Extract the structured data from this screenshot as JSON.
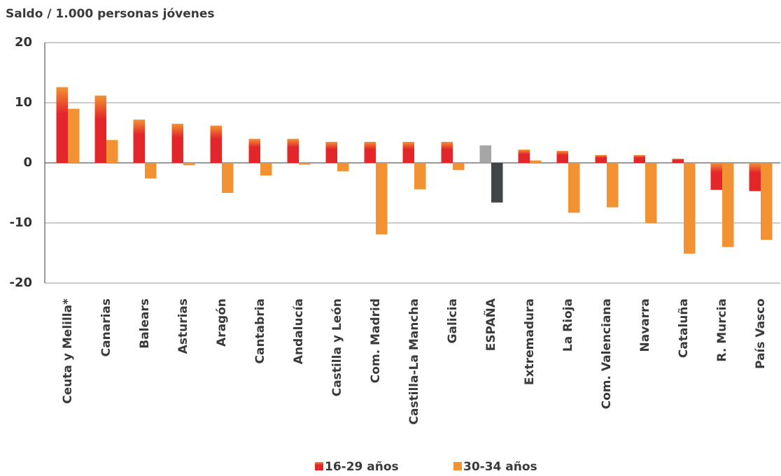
{
  "chart_data": {
    "type": "bar",
    "title": "Saldo / 1.000 personas jóvenes",
    "categories": [
      "Ceuta y Melilla*",
      "Canarias",
      "Balears",
      "Asturias",
      "Aragón",
      "Cantabria",
      "Andalucía",
      "Castilla y León",
      "Com. Madrid",
      "Castilla-La Mancha",
      "Galicia",
      "ESPAÑA",
      "Extremadura",
      "La Rioja",
      "Com. Valenciana",
      "Navarra",
      "Cataluña",
      "R. Murcia",
      "País Vasco"
    ],
    "series": [
      {
        "name": "16-29 años",
        "color": "#e3262a",
        "highlight_color": "#a6a6a6",
        "values": [
          12.6,
          11.2,
          7.2,
          6.5,
          6.2,
          4.0,
          4.0,
          3.5,
          3.5,
          3.5,
          3.5,
          2.9,
          2.2,
          2.0,
          1.3,
          1.3,
          0.7,
          -4.5,
          -4.7
        ]
      },
      {
        "name": "30-34 años",
        "color": "#f39233",
        "highlight_color": "#404548",
        "values": [
          9.0,
          3.8,
          -2.6,
          -0.4,
          -5.0,
          -2.1,
          -0.3,
          -1.4,
          -11.9,
          -4.4,
          -1.2,
          -6.6,
          0.4,
          -8.3,
          -7.4,
          -10.0,
          -15.1,
          -14.0,
          -12.8
        ]
      }
    ],
    "highlight": 11,
    "ylim": [
      -20,
      20
    ],
    "yticks": [
      -20,
      -10,
      0,
      10,
      20
    ],
    "grid": true,
    "legend": "bottom"
  }
}
